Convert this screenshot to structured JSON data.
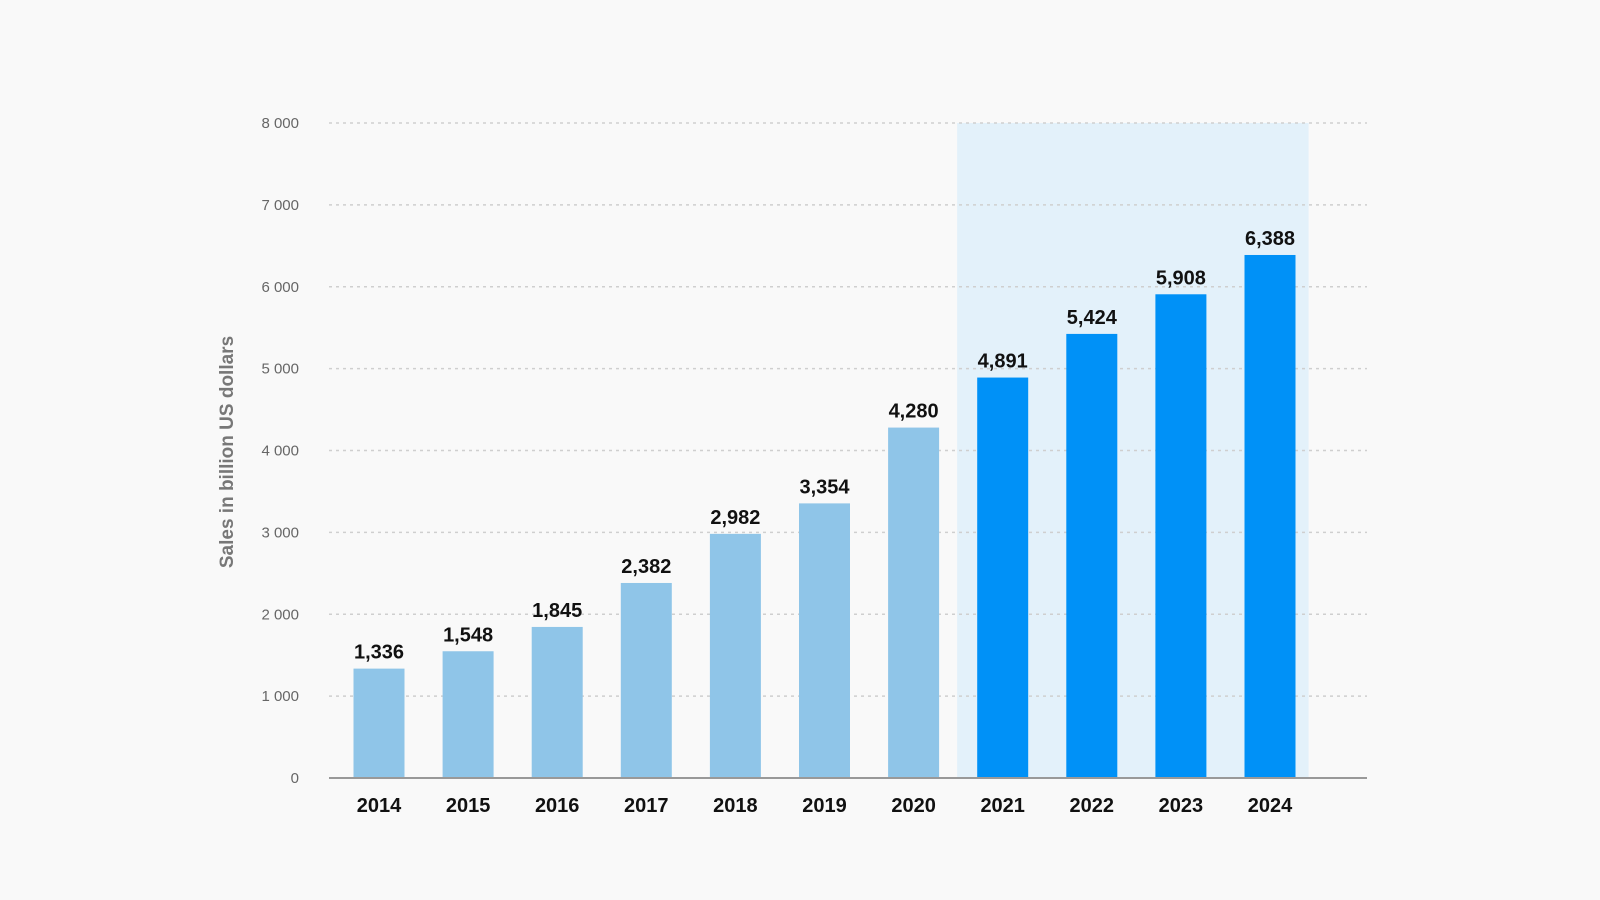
{
  "chart_data": {
    "type": "bar",
    "title": "",
    "xlabel": "",
    "ylabel": "Sales in billion US dollars",
    "ylim": [
      0,
      8000
    ],
    "yticks": [
      "0",
      "1 000",
      "2 000",
      "3 000",
      "4 000",
      "5 000",
      "6 000",
      "7 000",
      "8 000"
    ],
    "ytick_values": [
      0,
      1000,
      2000,
      3000,
      4000,
      5000,
      6000,
      7000,
      8000
    ],
    "grid": true,
    "categories": [
      "2014",
      "2015",
      "2016",
      "2017",
      "2018",
      "2019",
      "2020",
      "2021",
      "2022",
      "2023",
      "2024"
    ],
    "values": [
      1336,
      1548,
      1845,
      2382,
      2982,
      3354,
      4280,
      4891,
      5424,
      5908,
      6388
    ],
    "data_labels": [
      "1,336",
      "1,548",
      "1,845",
      "2,382",
      "2,982",
      "3,354",
      "4,280",
      "4,891",
      "5,424",
      "5,908",
      "6,388"
    ],
    "highlighted_categories": [
      "2021",
      "2022",
      "2023",
      "2024"
    ],
    "colors": {
      "bar": "#8fc5e8",
      "bar_highlighted": "#0091f7",
      "highlight_region": "#e3f1fa",
      "background": "#f9f9f9",
      "grid": "#cfcfcf",
      "axis": "#999999"
    }
  }
}
